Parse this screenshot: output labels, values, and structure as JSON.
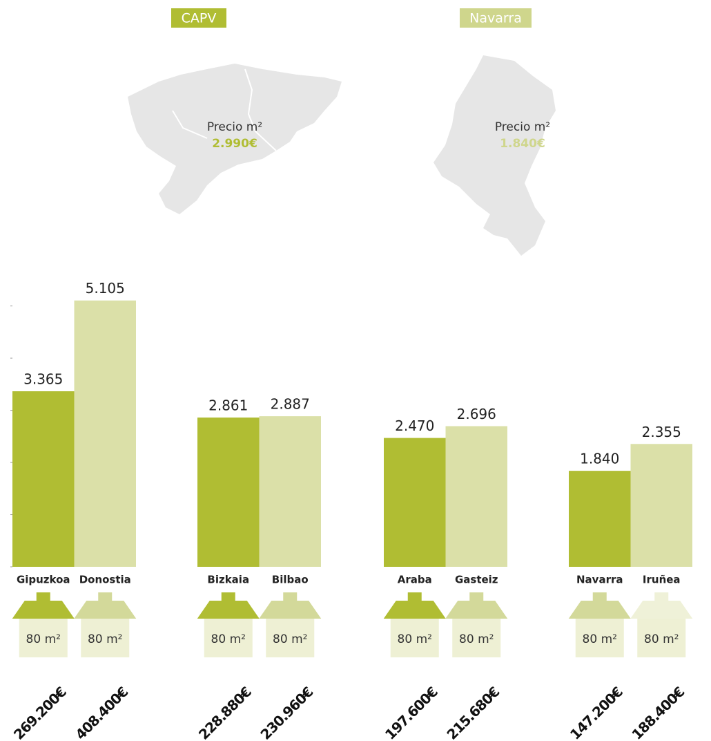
{
  "regions": [
    {
      "name": "CAPV",
      "color": "#b0bd33",
      "label": "Precio m²",
      "price": 2990,
      "price_label": "2.990€"
    },
    {
      "name": "Navarra",
      "color": "#cfd68c",
      "label": "Precio m²",
      "price": 1840,
      "price_label": "1.840€"
    }
  ],
  "chart_data": {
    "type": "bar",
    "categories": [
      "Gipuzkoa",
      "Donostia",
      "Bizkaia",
      "Bilbao",
      "Araba",
      "Gasteiz",
      "Navarra",
      "Iruñea"
    ],
    "values": [
      3365,
      5105,
      2861,
      2887,
      2470,
      2696,
      1840,
      2355
    ],
    "value_labels": [
      "3.365",
      "5.105",
      "2.861",
      "2.887",
      "2.470",
      "2.696",
      "1.840",
      "2.355"
    ],
    "colors": [
      "#b0bd33",
      "#dbe0a8",
      "#b0bd33",
      "#dbe0a8",
      "#b0bd33",
      "#dbe0a8",
      "#b0bd33",
      "#dbe0a8"
    ],
    "house_colors": [
      "#b0bd33",
      "#d3d99a",
      "#b0bd33",
      "#d3d99a",
      "#b0bd33",
      "#d3d99a",
      "#d3d99a",
      "#eff1d8"
    ],
    "areas": [
      "80 m²",
      "80 m²",
      "80 m²",
      "80 m²",
      "80 m²",
      "80 m²",
      "80 m²",
      "80 m²"
    ],
    "prices": [
      269200,
      408400,
      228880,
      230960,
      197600,
      215680,
      147200,
      188400
    ],
    "price_labels": [
      "269.200€",
      "408.400€",
      "228.880€",
      "230.960€",
      "197.600€",
      "215.680€",
      "147.200€",
      "188.400€"
    ],
    "ylim": [
      0,
      5300
    ],
    "yticks": [
      0,
      1000,
      2000,
      3000,
      4000,
      5000
    ]
  }
}
